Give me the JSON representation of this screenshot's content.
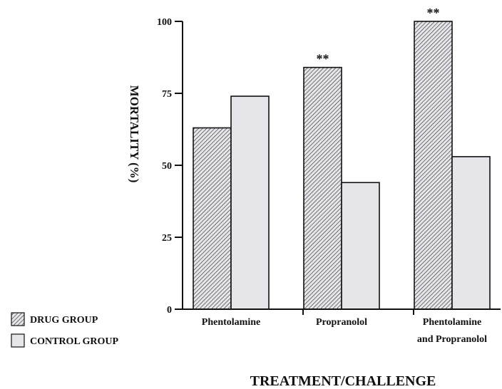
{
  "chart_data": {
    "type": "bar",
    "categories": [
      "Phentolamine",
      "Propranolol",
      "Phentolamine and Propranolol"
    ],
    "category_lines": [
      [
        "Phentolamine"
      ],
      [
        "Propranolol"
      ],
      [
        "Phentolamine",
        "and Propranolol"
      ]
    ],
    "series": [
      {
        "name": "DRUG GROUP",
        "values": [
          63,
          84,
          100
        ],
        "pattern": "hatched"
      },
      {
        "name": "CONTROL GROUP",
        "values": [
          74,
          44,
          53
        ],
        "pattern": "solid"
      }
    ],
    "annotations": [
      {
        "category": "Propranolol",
        "series": "DRUG GROUP",
        "text": "**"
      },
      {
        "category": "Phentolamine and Propranolol",
        "series": "DRUG GROUP",
        "text": "**"
      }
    ],
    "ylabel": "MORTALITY (%)",
    "xlabel": "TREATMENT/CHALLENGE",
    "ylim": [
      0,
      100
    ],
    "yticks": [
      0,
      25,
      50,
      75,
      100
    ],
    "grid": false,
    "legend": {
      "placement": "bottom-left",
      "entries": [
        "DRUG GROUP",
        "CONTROL GROUP"
      ]
    },
    "colors": {
      "bar_fill": "#e6e6ea",
      "hatch": "#333333",
      "axis": "#111111"
    }
  }
}
